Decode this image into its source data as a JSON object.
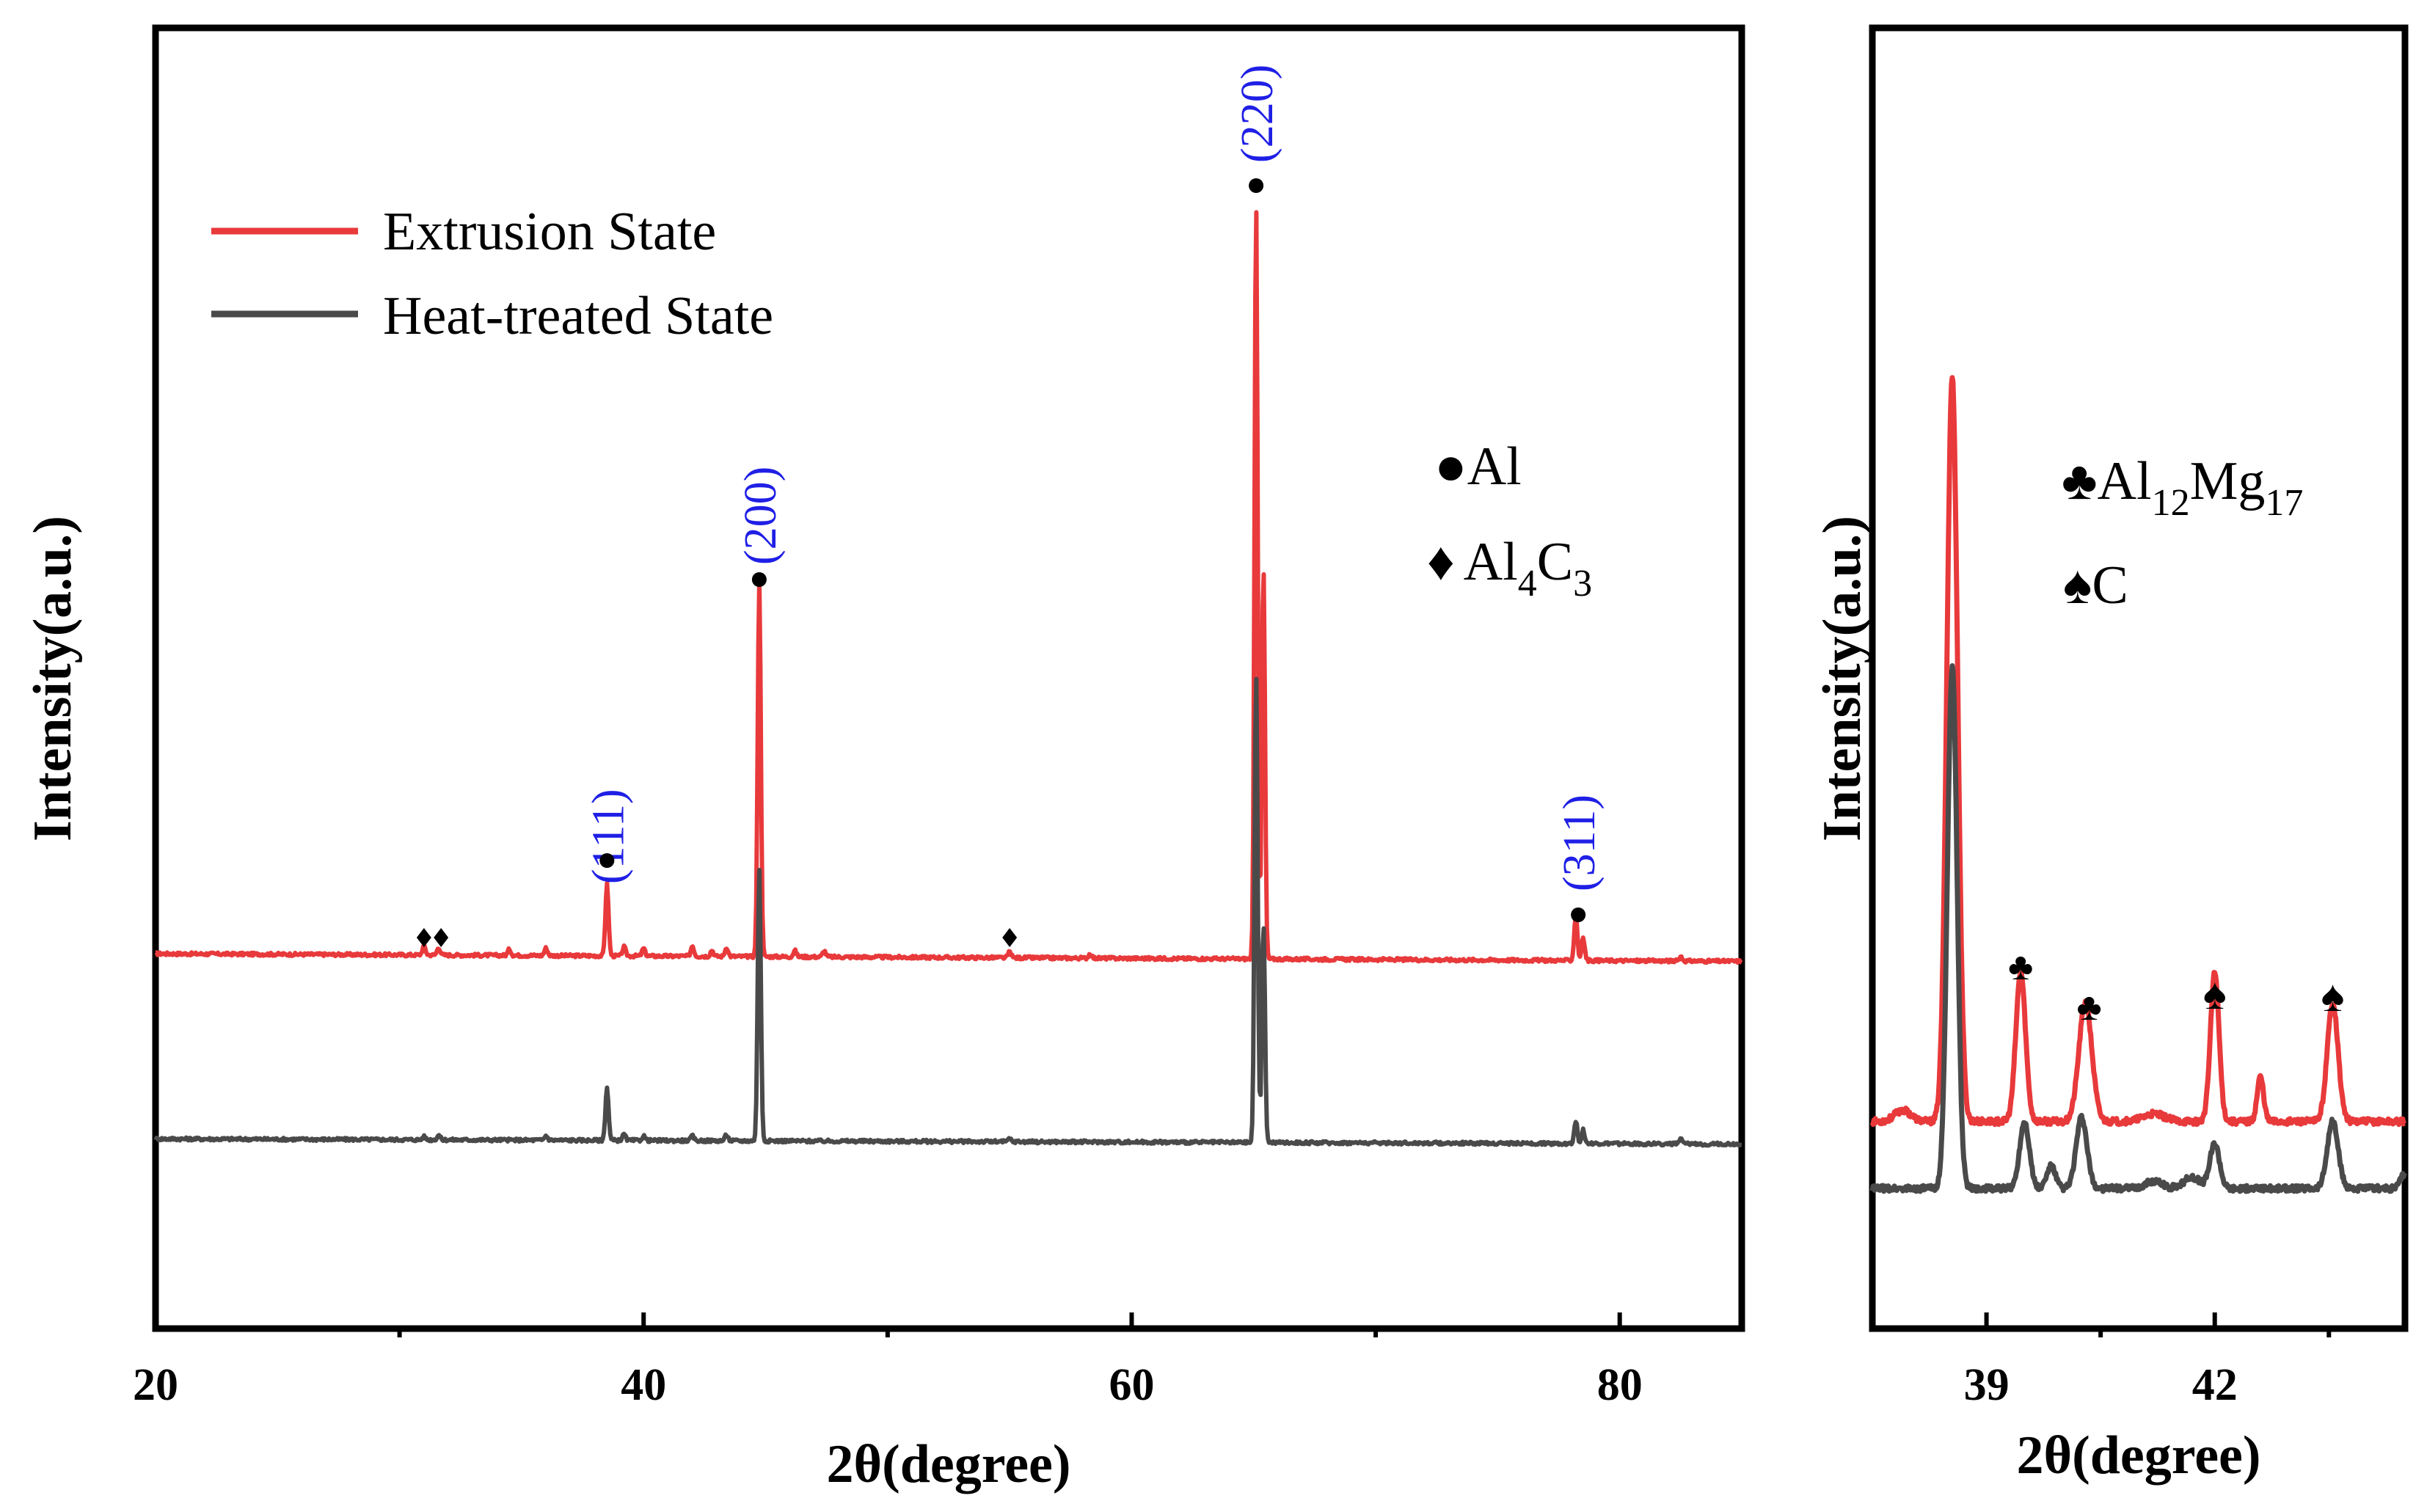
{
  "chart_data": [
    {
      "type": "line",
      "xlabel": "2θ(degree)",
      "ylabel": "Intensity(a.u.)",
      "xlim": [
        20,
        85
      ],
      "xticks": [
        20,
        40,
        60,
        80
      ],
      "x_minor_ticks": [
        30,
        50,
        70
      ],
      "yticks": "none",
      "legend": {
        "placement": "top-left",
        "entries": [
          {
            "label": "Extrusion State",
            "color": "#e8393b"
          },
          {
            "label": "Heat-treated State",
            "color": "#4a4a4a"
          }
        ]
      },
      "series": [
        {
          "name": "Extrusion State",
          "color": "#e8393b",
          "baseline_start": 0.0,
          "baseline_end": -0.01,
          "peaks": [
            {
              "x": 31.0,
              "h": 0.012
            },
            {
              "x": 31.6,
              "h": 0.01
            },
            {
              "x": 34.5,
              "h": 0.008
            },
            {
              "x": 36.0,
              "h": 0.01
            },
            {
              "x": 38.5,
              "h": 0.095
            },
            {
              "x": 39.2,
              "h": 0.012
            },
            {
              "x": 40.0,
              "h": 0.01
            },
            {
              "x": 42.0,
              "h": 0.014
            },
            {
              "x": 42.8,
              "h": 0.008
            },
            {
              "x": 43.4,
              "h": 0.012
            },
            {
              "x": 44.74,
              "h": 0.5
            },
            {
              "x": 46.2,
              "h": 0.008
            },
            {
              "x": 47.4,
              "h": 0.008
            },
            {
              "x": 55.0,
              "h": 0.008
            },
            {
              "x": 58.3,
              "h": 0.006
            },
            {
              "x": 65.1,
              "h": 1.0
            },
            {
              "x": 65.4,
              "h": 0.52
            },
            {
              "x": 78.2,
              "h": 0.06
            },
            {
              "x": 78.5,
              "h": 0.03
            },
            {
              "x": 82.5,
              "h": 0.006
            }
          ]
        },
        {
          "name": "Heat-treated State",
          "color": "#4a4a4a",
          "baseline_start": -0.245,
          "baseline_end": -0.252,
          "peaks": [
            {
              "x": 31.0,
              "h": 0.004
            },
            {
              "x": 31.6,
              "h": 0.006
            },
            {
              "x": 36.0,
              "h": 0.006
            },
            {
              "x": 38.5,
              "h": 0.07
            },
            {
              "x": 39.2,
              "h": 0.008
            },
            {
              "x": 40.0,
              "h": 0.006
            },
            {
              "x": 42.0,
              "h": 0.006
            },
            {
              "x": 43.4,
              "h": 0.008
            },
            {
              "x": 44.74,
              "h": 0.36
            },
            {
              "x": 55.0,
              "h": 0.004
            },
            {
              "x": 65.1,
              "h": 0.62
            },
            {
              "x": 65.4,
              "h": 0.29
            },
            {
              "x": 78.2,
              "h": 0.03
            },
            {
              "x": 78.5,
              "h": 0.018
            },
            {
              "x": 82.5,
              "h": 0.006
            }
          ]
        }
      ],
      "annotations": {
        "hkl": [
          {
            "label": "(111)",
            "x": 38.5
          },
          {
            "label": "(200)",
            "x": 44.74
          },
          {
            "label": "(220)",
            "x": 65.1
          },
          {
            "label": "(311)",
            "x": 78.3
          }
        ],
        "al_markers_x": [
          38.5,
          44.74,
          65.1,
          78.3
        ],
        "al4c3_markers_x": [
          31.0,
          31.7,
          55.0
        ]
      },
      "phase_legend": [
        {
          "symbol": "●",
          "label": "Al"
        },
        {
          "symbol": "♦",
          "label": "Al",
          "sub1": "4",
          "label2": "C",
          "sub2": "3"
        }
      ]
    },
    {
      "type": "line",
      "xlabel": "2θ(degree)",
      "ylabel": "Intensity(a.u.)",
      "xlim": [
        37.5,
        44.5
      ],
      "xticks": [
        39,
        42
      ],
      "x_minor_ticks": [
        40.5,
        43.5
      ],
      "yticks": "none",
      "series": [
        {
          "name": "Extrusion State",
          "color": "#e8393b",
          "baseline": 0.09,
          "peaks": [
            {
              "x": 37.9,
              "h": 0.015,
              "w": 0.15
            },
            {
              "x": 38.55,
              "h": 1.0,
              "w": 0.1
            },
            {
              "x": 39.45,
              "h": 0.2,
              "w": 0.09
            },
            {
              "x": 40.3,
              "h": 0.16,
              "w": 0.12
            },
            {
              "x": 41.2,
              "h": 0.01,
              "w": 0.2
            },
            {
              "x": 42.0,
              "h": 0.2,
              "w": 0.08
            },
            {
              "x": 42.6,
              "h": 0.06,
              "w": 0.06
            },
            {
              "x": 43.55,
              "h": 0.16,
              "w": 0.1
            }
          ]
        },
        {
          "name": "Heat-treated State",
          "color": "#4a4a4a",
          "baseline": 0.0,
          "peaks": [
            {
              "x": 38.55,
              "h": 0.7,
              "w": 0.09
            },
            {
              "x": 39.5,
              "h": 0.09,
              "w": 0.09
            },
            {
              "x": 39.85,
              "h": 0.03,
              "w": 0.08
            },
            {
              "x": 40.25,
              "h": 0.095,
              "w": 0.1
            },
            {
              "x": 41.2,
              "h": 0.01,
              "w": 0.15
            },
            {
              "x": 41.7,
              "h": 0.015,
              "w": 0.15
            },
            {
              "x": 42.0,
              "h": 0.06,
              "w": 0.09
            },
            {
              "x": 43.55,
              "h": 0.09,
              "w": 0.1
            },
            {
              "x": 44.5,
              "h": 0.02,
              "w": 0.08
            }
          ]
        }
      ],
      "annotations": {
        "club_markers_x": [
          39.45,
          40.35
        ],
        "spade_markers_x": [
          42.0,
          43.55
        ]
      },
      "phase_legend": [
        {
          "symbol": "♣",
          "label": "Al",
          "sub1": "12",
          "label2": "Mg",
          "sub2": "17"
        },
        {
          "symbol": "♠",
          "label": "C"
        }
      ]
    }
  ]
}
